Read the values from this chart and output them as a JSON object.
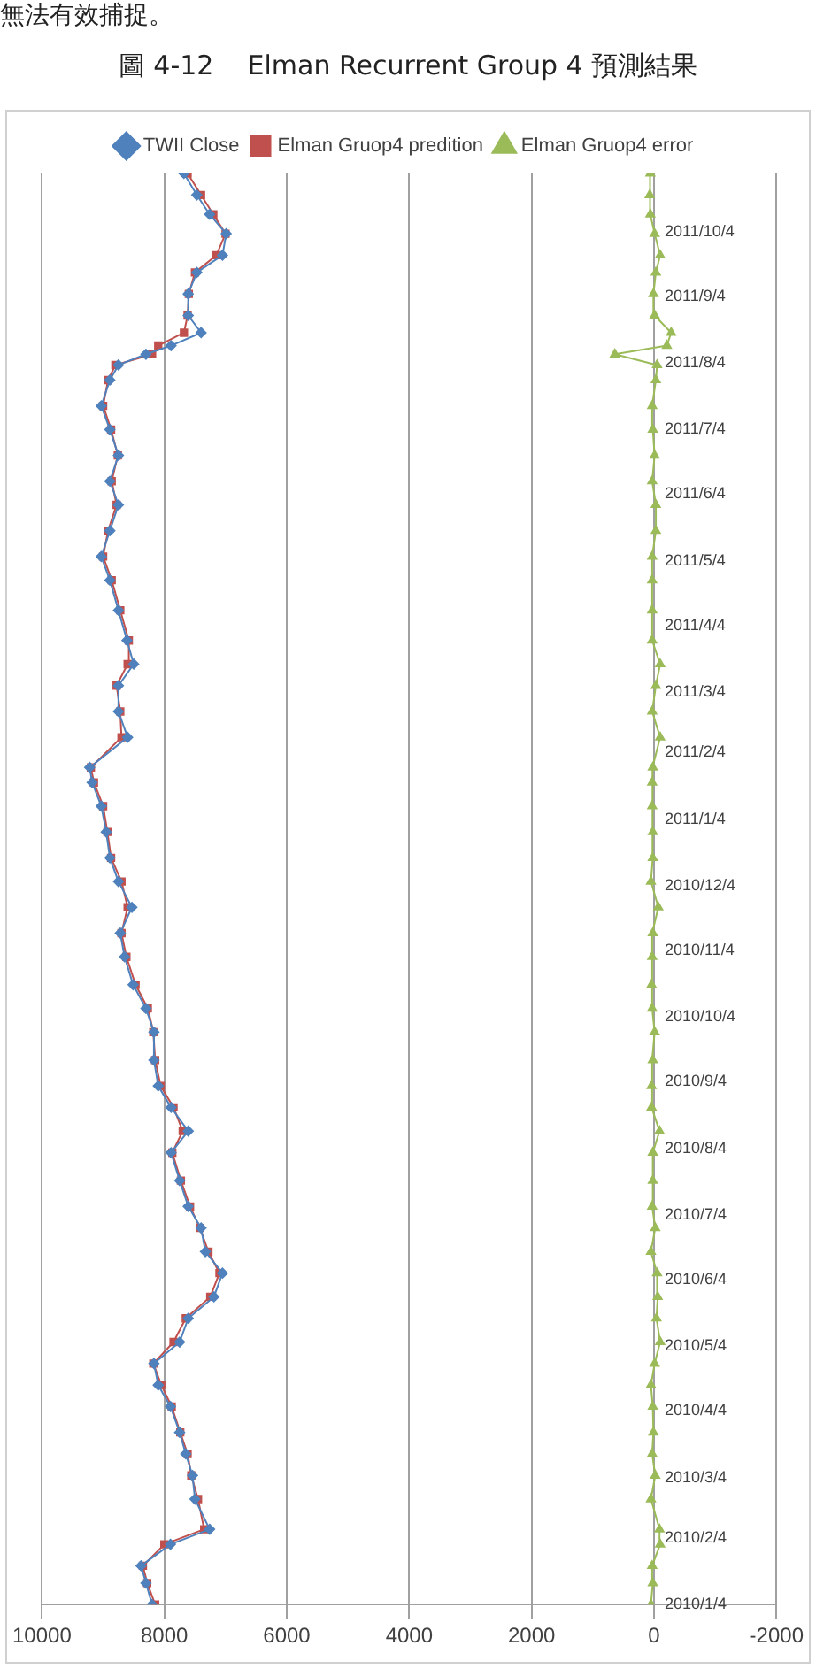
{
  "chart_data": {
    "type": "line",
    "title": "圖 4-12    Elman Recurrent Group 4 預測結果",
    "annotations": [
      "無法有效捕捉。"
    ],
    "x": [
      "2010-01-04",
      "2010-01-14",
      "2010-01-22",
      "2010-02-01",
      "2010-02-08",
      "2010-02-22",
      "2010-03-05",
      "2010-03-15",
      "2010-03-25",
      "2010-04-06",
      "2010-04-16",
      "2010-04-26",
      "2010-05-06",
      "2010-05-17",
      "2010-05-27",
      "2010-06-07",
      "2010-06-17",
      "2010-06-28",
      "2010-07-08",
      "2010-07-20",
      "2010-08-02",
      "2010-08-12",
      "2010-08-23",
      "2010-09-02",
      "2010-09-14",
      "2010-09-27",
      "2010-10-08",
      "2010-10-19",
      "2010-11-01",
      "2010-11-12",
      "2010-11-24",
      "2010-12-06",
      "2010-12-17",
      "2010-12-29",
      "2011-01-10",
      "2011-01-21",
      "2011-01-28",
      "2011-02-11",
      "2011-02-23",
      "2011-03-07",
      "2011-03-17",
      "2011-03-28",
      "2011-04-11",
      "2011-04-25",
      "2011-05-06",
      "2011-05-18",
      "2011-05-30",
      "2011-06-10",
      "2011-06-22",
      "2011-07-04",
      "2011-07-15",
      "2011-07-27",
      "2011-08-03",
      "2011-08-08",
      "2011-08-12",
      "2011-08-18",
      "2011-08-26",
      "2011-09-05",
      "2011-09-15",
      "2011-09-23",
      "2011-10-03",
      "2011-10-12",
      "2011-10-21",
      "2011-10-31"
    ],
    "series": [
      {
        "name": "TWII Close",
        "color": "#4f81bd",
        "marker": "diamond",
        "values": [
          8200,
          8300,
          8380,
          7900,
          7260,
          7500,
          7540,
          7650,
          7750,
          7900,
          8100,
          8170,
          7750,
          7610,
          7190,
          7050,
          7330,
          7400,
          7610,
          7750,
          7890,
          7610,
          7890,
          8100,
          8170,
          8170,
          8300,
          8510,
          8650,
          8720,
          8530,
          8750,
          8890,
          8950,
          9030,
          9180,
          9220,
          8600,
          8750,
          8750,
          8500,
          8610,
          8750,
          8890,
          9030,
          8890,
          8750,
          8890,
          8750,
          8890,
          9030,
          8890,
          8750,
          8300,
          7890,
          7400,
          7610,
          7610,
          7470,
          7050,
          6990,
          7260,
          7470,
          7680
        ]
      },
      {
        "name": "Elman Gruop4 predition",
        "color": "#c0504d",
        "marker": "square",
        "values": [
          8150,
          8280,
          8350,
          8000,
          7350,
          7450,
          7560,
          7620,
          7740,
          7880,
          8050,
          8180,
          7850,
          7650,
          7250,
          7100,
          7280,
          7420,
          7580,
          7730,
          7870,
          7700,
          7850,
          8060,
          8150,
          8180,
          8270,
          8470,
          8620,
          8700,
          8600,
          8700,
          8870,
          8930,
          9000,
          9150,
          9200,
          8700,
          8720,
          8780,
          8600,
          8580,
          8720,
          8860,
          9000,
          8920,
          8780,
          8860,
          8760,
          8870,
          9000,
          8920,
          8800,
          8200,
          8100,
          7680,
          7620,
          7600,
          7500,
          7150,
          7000,
          7200,
          7400,
          7620
        ]
      },
      {
        "name": "Elman Gruop4 error",
        "color": "#9bbb59",
        "marker": "triangle",
        "values": [
          50,
          20,
          30,
          -100,
          -90,
          50,
          -20,
          30,
          10,
          20,
          50,
          -10,
          -100,
          -40,
          -60,
          -50,
          50,
          -20,
          30,
          20,
          20,
          -90,
          40,
          40,
          20,
          -10,
          30,
          40,
          30,
          20,
          -70,
          50,
          20,
          20,
          30,
          30,
          20,
          -100,
          30,
          -30,
          -100,
          30,
          30,
          30,
          30,
          -30,
          -30,
          30,
          -10,
          20,
          30,
          -30,
          -50,
          640,
          -210,
          -280,
          -10,
          10,
          -30,
          -100,
          -10,
          60,
          70,
          60
        ]
      }
    ],
    "orientation": "horizontal",
    "ylim": [
      "2010-01-04",
      "2011-10-31"
    ],
    "yticks": [
      {
        "value": "2010-01-04",
        "label": "2010/1/4"
      },
      {
        "value": "2010-02-04",
        "label": "2010/2/4"
      },
      {
        "value": "2010-03-04",
        "label": "2010/3/4"
      },
      {
        "value": "2010-04-04",
        "label": "2010/4/4"
      },
      {
        "value": "2010-05-04",
        "label": "2010/5/4"
      },
      {
        "value": "2010-06-04",
        "label": "2010/6/4"
      },
      {
        "value": "2010-07-04",
        "label": "2010/7/4"
      },
      {
        "value": "2010-08-04",
        "label": "2010/8/4"
      },
      {
        "value": "2010-09-04",
        "label": "2010/9/4"
      },
      {
        "value": "2010-10-04",
        "label": "2010/10/4"
      },
      {
        "value": "2010-11-04",
        "label": "2010/11/4"
      },
      {
        "value": "2010-12-04",
        "label": "2010/12/4"
      },
      {
        "value": "2011-01-04",
        "label": "2011/1/4"
      },
      {
        "value": "2011-02-04",
        "label": "2011/2/4"
      },
      {
        "value": "2011-03-04",
        "label": "2011/3/4"
      },
      {
        "value": "2011-04-04",
        "label": "2011/4/4"
      },
      {
        "value": "2011-05-04",
        "label": "2011/5/4"
      },
      {
        "value": "2011-06-04",
        "label": "2011/6/4"
      },
      {
        "value": "2011-07-04",
        "label": "2011/7/4"
      },
      {
        "value": "2011-08-04",
        "label": "2011/8/4"
      },
      {
        "value": "2011-09-04",
        "label": "2011/9/4"
      },
      {
        "value": "2011-10-04",
        "label": "2011/10/4"
      }
    ],
    "xlim": [
      10000,
      -2000
    ],
    "xticks": [
      10000,
      8000,
      6000,
      4000,
      2000,
      0,
      -2000
    ],
    "grid": "x",
    "legend": "top",
    "line_style": "solid"
  }
}
